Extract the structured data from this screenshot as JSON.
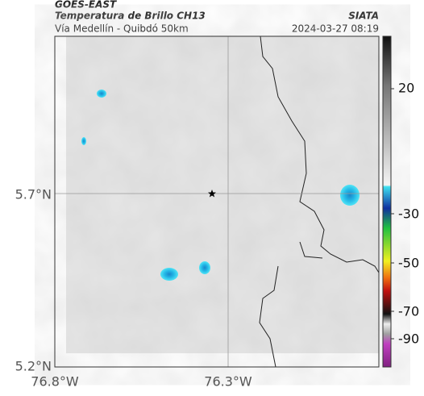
{
  "header": {
    "satellite": "GOES-EAST",
    "title": "Temperatura de Brillo CH13",
    "agency": "SIATA",
    "subtitle": "Vía Medellín - Quibdó 50km",
    "timestamp": "2024-03-27 08:19"
  },
  "axes": {
    "lat_labels": [
      "5.7°N",
      "5.2°N"
    ],
    "lon_labels": [
      "76.8°W",
      "76.3°W"
    ]
  },
  "colorbar": {
    "labels": [
      "20",
      "-30",
      "-50",
      "-70",
      "-90"
    ]
  }
}
